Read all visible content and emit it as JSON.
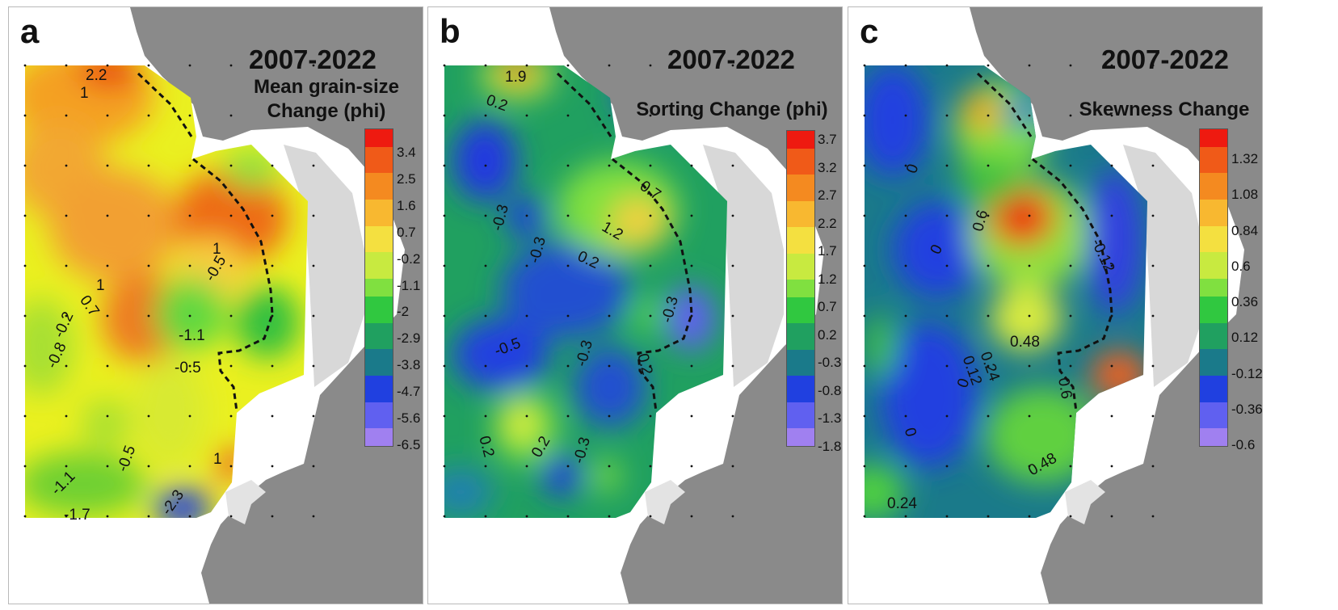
{
  "colors": {
    "land": "#8a8a8a",
    "shore": "#d3d3d3",
    "contour_line": "#111111",
    "stations": "#111111"
  },
  "panels": [
    {
      "letter": "a",
      "period": "2007-2022",
      "title_lines": [
        "Mean grain-size",
        "Change (phi)"
      ],
      "colorbar_ticks": [
        "3.4",
        "2.5",
        "1.6",
        "0.7",
        "-0.2",
        "-1.1",
        "-2",
        "-2.9",
        "-3.8",
        "-4.7",
        "-5.6",
        "-6.5"
      ],
      "contour_labels": [
        "2.2",
        "1",
        "1",
        "-0.5",
        "1",
        "0.7",
        "-0.2",
        "-0.8",
        "-1.1",
        "-0.5",
        "-0.5",
        "1",
        "-1.1",
        "-2.3",
        "-1.7"
      ]
    },
    {
      "letter": "b",
      "period": "2007-2022",
      "title_lines": [
        "Sorting Change (phi)"
      ],
      "colorbar_ticks": [
        "3.7",
        "3.2",
        "2.7",
        "2.2",
        "1.7",
        "1.2",
        "0.7",
        "0.2",
        "-0.3",
        "-0.8",
        "-1.3",
        "-1.8"
      ],
      "contour_labels": [
        "1.9",
        "0.2",
        "0.7",
        "-0.3",
        "-0.3",
        "1.2",
        "0.2",
        "-0.3",
        "-0.5",
        "-0.3",
        "0.2",
        "0.2",
        "0.2",
        "-0.3"
      ]
    },
    {
      "letter": "c",
      "period": "2007-2022",
      "title_lines": [
        "Skewness Change"
      ],
      "colorbar_ticks": [
        "1.32",
        "1.08",
        "0.84",
        "0.6",
        "0.36",
        "0.12",
        "-0.12",
        "-0.36",
        "-0.6"
      ],
      "contour_labels": [
        "0",
        "0.6",
        "-0.12",
        "0",
        "0.48",
        "0.24",
        "0.12",
        "0",
        "0.6",
        "0",
        "0.48",
        "0.24"
      ]
    }
  ]
}
